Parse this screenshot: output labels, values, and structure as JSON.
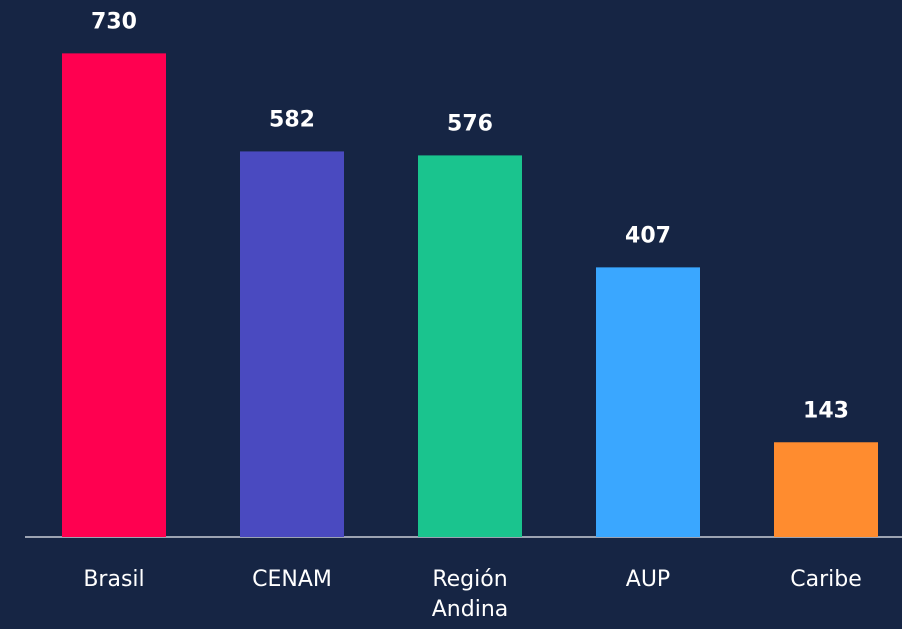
{
  "chart_data": {
    "type": "bar",
    "categories": [
      "Brasil",
      "CENAM",
      "Región Andina",
      "AUP",
      "Caribe"
    ],
    "values": [
      730,
      582,
      576,
      407,
      143
    ],
    "colors": [
      "#ff0050",
      "#4a4ac0",
      "#1ac48e",
      "#3aa7ff",
      "#ff8c2f"
    ],
    "ylim": [
      0,
      800
    ]
  }
}
